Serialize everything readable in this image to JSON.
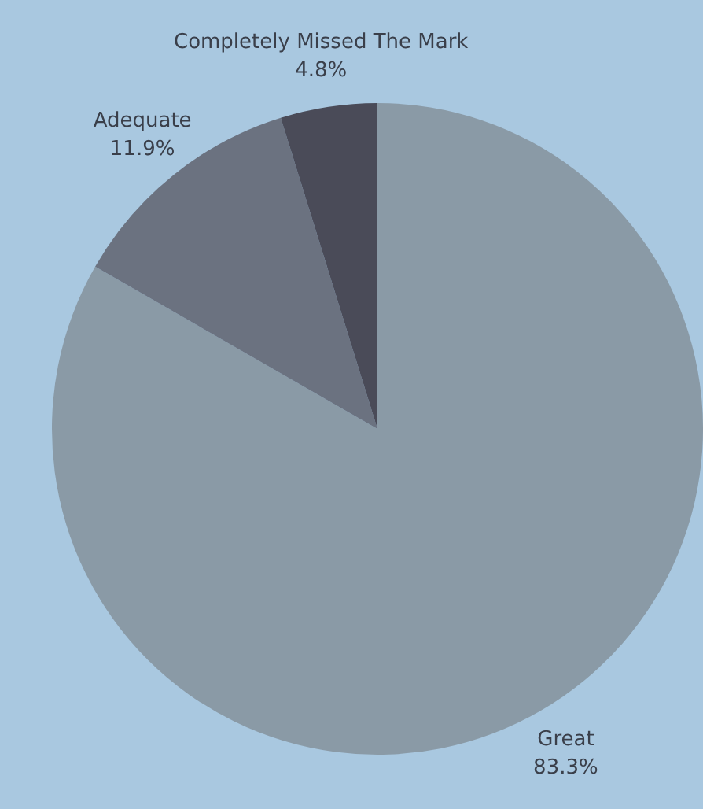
{
  "chart_data": {
    "type": "pie",
    "categories": [
      "Great",
      "Adequate",
      "Completely Missed The Mark"
    ],
    "values": [
      83.3,
      11.9,
      4.8
    ],
    "colors": [
      "#8a9aa6",
      "#6b7280",
      "#4a4b58"
    ],
    "value_labels": [
      "83.3%",
      "11.9%",
      "4.8%"
    ],
    "legend": false
  }
}
